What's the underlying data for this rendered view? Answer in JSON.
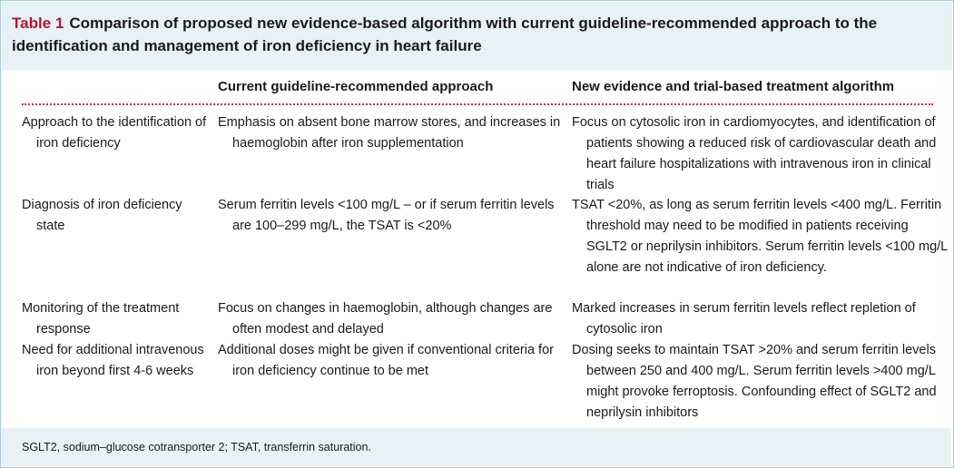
{
  "title": {
    "number": "Table 1",
    "text": "Comparison of proposed new evidence-based algorithm with current guideline-recommended approach to the identification and management of iron deficiency in heart failure"
  },
  "headers": {
    "col2": "Current guideline-recommended approach",
    "col3": "New evidence and trial-based treatment algorithm"
  },
  "rows": [
    {
      "aspect": "Approach to the identification of iron deficiency",
      "current": "Emphasis on absent bone marrow stores, and increases in haemoglobin after iron supplementation",
      "new": "Focus on cytosolic iron in cardiomyocytes, and identification of patients showing a reduced risk of cardiovascular death and heart failure hospitalizations with intravenous iron in clinical trials"
    },
    {
      "aspect": "Diagnosis of iron deficiency state",
      "current": "Serum ferritin levels <100 mg/L – or if serum ferritin levels are 100–299 mg/L, the TSAT is <20%",
      "new": "TSAT <20%, as long as serum ferritin levels <400 mg/L. Ferritin threshold may need to be modified in patients receiving SGLT2 or neprilysin inhibitors. Serum ferritin levels <100 mg/L alone are not indicative of iron deficiency."
    },
    {
      "aspect": "Monitoring of the treatment response",
      "current": "Focus on changes in haemoglobin, although changes are often modest and delayed",
      "new": "Marked increases in serum ferritin levels reflect repletion of cytosolic iron"
    },
    {
      "aspect": "Need for additional intravenous iron beyond first 4-6 weeks",
      "current": "Additional doses might be given if conventional criteria for iron deficiency continue to be met",
      "new": "Dosing seeks to maintain TSAT >20% and serum ferritin levels between 250 and 400 mg/L. Serum ferritin levels >400 mg/L might provoke ferroptosis. Confounding effect of SGLT2 and neprilysin inhibitors"
    }
  ],
  "footnote": "SGLT2, sodium–glucose cotransporter 2; TSAT, transferrin saturation.",
  "colors": {
    "accent": "#b71234",
    "band": "#e7f2f7",
    "dots": "#c4334e"
  }
}
